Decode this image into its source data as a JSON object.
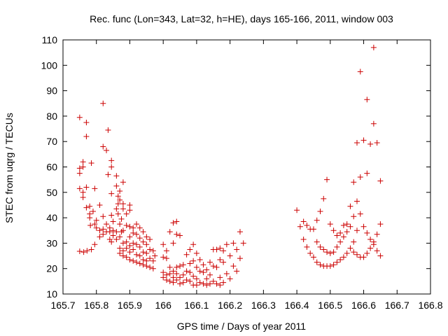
{
  "chart_data": {
    "type": "scatter",
    "title": "Rec. func (Lon=343, Lat=32, h=HE), days 165-166, 2011, window 003",
    "xlabel": "GPS time / Days of year 2011",
    "ylabel": "STEC from uqrg / TECUs",
    "xlim": [
      165.7,
      166.8
    ],
    "ylim": [
      10,
      110
    ],
    "xticks": [
      "165.7",
      "165.8",
      "165.9",
      "166",
      "166.1",
      "166.2",
      "166.3",
      "166.4",
      "166.5",
      "166.6",
      "166.7",
      "166.8"
    ],
    "yticks": [
      "10",
      "20",
      "30",
      "40",
      "50",
      "60",
      "70",
      "80",
      "90",
      "100",
      "110"
    ],
    "grid": false,
    "legend": "none",
    "marker": "plus",
    "color": "#cc0000",
    "points": [
      [
        165.75,
        79.5
      ],
      [
        165.75,
        59.5
      ],
      [
        165.75,
        57.5
      ],
      [
        165.75,
        51.5
      ],
      [
        165.75,
        26.8
      ],
      [
        165.76,
        62.0
      ],
      [
        165.76,
        60.0
      ],
      [
        165.76,
        50.0
      ],
      [
        165.76,
        48.0
      ],
      [
        165.762,
        26.5
      ],
      [
        165.77,
        77.5
      ],
      [
        165.77,
        72.0
      ],
      [
        165.77,
        52.0
      ],
      [
        165.77,
        44.0
      ],
      [
        165.772,
        27.0
      ],
      [
        165.78,
        44.5
      ],
      [
        165.78,
        41.5
      ],
      [
        165.78,
        40.0
      ],
      [
        165.782,
        37.0
      ],
      [
        165.785,
        61.5
      ],
      [
        165.785,
        27.5
      ],
      [
        165.79,
        42.5
      ],
      [
        165.795,
        37.5
      ],
      [
        165.795,
        51.5
      ],
      [
        165.795,
        29.5
      ],
      [
        165.8,
        39.0
      ],
      [
        165.8,
        36.0
      ],
      [
        165.81,
        45.0
      ],
      [
        165.81,
        35.0
      ],
      [
        165.81,
        32.5
      ],
      [
        165.82,
        85.0
      ],
      [
        165.82,
        68.0
      ],
      [
        165.82,
        40.5
      ],
      [
        165.82,
        35.5
      ],
      [
        165.82,
        33.5
      ],
      [
        165.83,
        66.5
      ],
      [
        165.83,
        34.5
      ],
      [
        165.83,
        37.5
      ],
      [
        165.835,
        74.5
      ],
      [
        165.835,
        57.0
      ],
      [
        165.84,
        36.0
      ],
      [
        165.84,
        34.5
      ],
      [
        165.84,
        31.5
      ],
      [
        165.845,
        62.5
      ],
      [
        165.845,
        60.0
      ],
      [
        165.845,
        49.5
      ],
      [
        165.845,
        41.0
      ],
      [
        165.845,
        30.5
      ],
      [
        165.85,
        38.5
      ],
      [
        165.85,
        35.0
      ],
      [
        165.85,
        33.0
      ],
      [
        165.86,
        56.5
      ],
      [
        165.86,
        52.5
      ],
      [
        165.86,
        43.5
      ],
      [
        165.86,
        34.5
      ],
      [
        165.86,
        31.5
      ],
      [
        165.865,
        48.5
      ],
      [
        165.865,
        45.5
      ],
      [
        165.865,
        41.5
      ],
      [
        165.87,
        50.5
      ],
      [
        165.87,
        47.0
      ],
      [
        165.87,
        37.5
      ],
      [
        165.87,
        32.5
      ],
      [
        165.87,
        28.0
      ],
      [
        165.87,
        26.0
      ],
      [
        165.875,
        39.5
      ],
      [
        165.875,
        34.5
      ],
      [
        165.88,
        54.0
      ],
      [
        165.88,
        45.5
      ],
      [
        165.88,
        43.5
      ],
      [
        165.88,
        35.0
      ],
      [
        165.88,
        30.0
      ],
      [
        165.88,
        27.0
      ],
      [
        165.88,
        25.0
      ],
      [
        165.89,
        41.5
      ],
      [
        165.89,
        37.0
      ],
      [
        165.89,
        30.5
      ],
      [
        165.89,
        28.0
      ],
      [
        165.89,
        24.5
      ],
      [
        165.9,
        45.0
      ],
      [
        165.9,
        43.0
      ],
      [
        165.9,
        36.5
      ],
      [
        165.9,
        32.5
      ],
      [
        165.9,
        29.0
      ],
      [
        165.9,
        26.5
      ],
      [
        165.9,
        23.5
      ],
      [
        165.91,
        36.0
      ],
      [
        165.91,
        34.0
      ],
      [
        165.91,
        30.0
      ],
      [
        165.91,
        27.5
      ],
      [
        165.91,
        23.0
      ],
      [
        165.92,
        37.5
      ],
      [
        165.92,
        33.5
      ],
      [
        165.92,
        29.5
      ],
      [
        165.92,
        25.5
      ],
      [
        165.92,
        22.5
      ],
      [
        165.93,
        36.0
      ],
      [
        165.93,
        32.0
      ],
      [
        165.93,
        28.5
      ],
      [
        165.93,
        25.0
      ],
      [
        165.93,
        22.0
      ],
      [
        165.94,
        34.5
      ],
      [
        165.94,
        30.5
      ],
      [
        165.94,
        26.5
      ],
      [
        165.94,
        23.5
      ],
      [
        165.94,
        21.5
      ],
      [
        165.95,
        32.5
      ],
      [
        165.95,
        29.5
      ],
      [
        165.95,
        26.0
      ],
      [
        165.95,
        23.0
      ],
      [
        165.95,
        21.0
      ],
      [
        165.96,
        31.5
      ],
      [
        165.96,
        27.5
      ],
      [
        165.96,
        24.0
      ],
      [
        165.96,
        20.5
      ],
      [
        165.97,
        27.0
      ],
      [
        165.97,
        23.0
      ],
      [
        165.97,
        20.0
      ],
      [
        165.975,
        25.0
      ],
      [
        166.0,
        29.5
      ],
      [
        166.0,
        24.5
      ],
      [
        166.0,
        18.5
      ],
      [
        166.0,
        16.5
      ],
      [
        166.01,
        27.0
      ],
      [
        166.01,
        24.0
      ],
      [
        166.01,
        17.5
      ],
      [
        166.01,
        15.5
      ],
      [
        166.02,
        34.5
      ],
      [
        166.02,
        20.5
      ],
      [
        166.02,
        18.0
      ],
      [
        166.02,
        15.0
      ],
      [
        166.03,
        38.0
      ],
      [
        166.03,
        30.0
      ],
      [
        166.03,
        19.0
      ],
      [
        166.03,
        16.5
      ],
      [
        166.03,
        14.5
      ],
      [
        166.04,
        38.5
      ],
      [
        166.04,
        33.5
      ],
      [
        166.04,
        20.5
      ],
      [
        166.04,
        18.0
      ],
      [
        166.04,
        15.5
      ],
      [
        166.05,
        33.0
      ],
      [
        166.05,
        21.0
      ],
      [
        166.05,
        16.5
      ],
      [
        166.05,
        14.0
      ],
      [
        166.06,
        21.5
      ],
      [
        166.06,
        17.5
      ],
      [
        166.06,
        14.5
      ],
      [
        166.07,
        25.5
      ],
      [
        166.07,
        19.0
      ],
      [
        166.07,
        15.5
      ],
      [
        166.08,
        27.5
      ],
      [
        166.08,
        22.0
      ],
      [
        166.08,
        18.5
      ],
      [
        166.08,
        15.0
      ],
      [
        166.09,
        29.5
      ],
      [
        166.09,
        23.0
      ],
      [
        166.09,
        17.0
      ],
      [
        166.09,
        13.5
      ],
      [
        166.1,
        26.0
      ],
      [
        166.1,
        20.5
      ],
      [
        166.1,
        16.0
      ],
      [
        166.1,
        13.5
      ],
      [
        166.11,
        23.5
      ],
      [
        166.11,
        19.0
      ],
      [
        166.11,
        14.5
      ],
      [
        166.12,
        21.5
      ],
      [
        166.12,
        18.5
      ],
      [
        166.12,
        14.0
      ],
      [
        166.13,
        19.5
      ],
      [
        166.13,
        16.0
      ],
      [
        166.13,
        13.5
      ],
      [
        166.14,
        22.5
      ],
      [
        166.14,
        17.5
      ],
      [
        166.14,
        14.0
      ],
      [
        166.15,
        27.5
      ],
      [
        166.15,
        21.0
      ],
      [
        166.15,
        15.0
      ],
      [
        166.16,
        27.5
      ],
      [
        166.16,
        20.5
      ],
      [
        166.16,
        14.0
      ],
      [
        166.17,
        28.0
      ],
      [
        166.17,
        23.5
      ],
      [
        166.17,
        16.5
      ],
      [
        166.17,
        13.5
      ],
      [
        166.18,
        27.0
      ],
      [
        166.18,
        22.5
      ],
      [
        166.18,
        14.5
      ],
      [
        166.19,
        29.5
      ],
      [
        166.19,
        18.0
      ],
      [
        166.2,
        25.0
      ],
      [
        166.2,
        16.0
      ],
      [
        166.21,
        30.0
      ],
      [
        166.21,
        21.0
      ],
      [
        166.22,
        27.5
      ],
      [
        166.22,
        19.0
      ],
      [
        166.23,
        34.5
      ],
      [
        166.23,
        24.0
      ],
      [
        166.24,
        30.0
      ],
      [
        166.4,
        43.0
      ],
      [
        166.41,
        36.5
      ],
      [
        166.42,
        38.5
      ],
      [
        166.42,
        31.5
      ],
      [
        166.43,
        37.0
      ],
      [
        166.43,
        28.5
      ],
      [
        166.44,
        35.5
      ],
      [
        166.44,
        26.0
      ],
      [
        166.45,
        35.5
      ],
      [
        166.45,
        24.5
      ],
      [
        166.46,
        39.0
      ],
      [
        166.46,
        30.5
      ],
      [
        166.46,
        22.5
      ],
      [
        166.47,
        42.5
      ],
      [
        166.47,
        28.5
      ],
      [
        166.47,
        21.5
      ],
      [
        166.48,
        47.5
      ],
      [
        166.48,
        27.5
      ],
      [
        166.48,
        21.0
      ],
      [
        166.49,
        55.0
      ],
      [
        166.49,
        26.5
      ],
      [
        166.49,
        21.0
      ],
      [
        166.5,
        37.5
      ],
      [
        166.5,
        26.0
      ],
      [
        166.5,
        21.0
      ],
      [
        166.51,
        35.0
      ],
      [
        166.51,
        26.5
      ],
      [
        166.51,
        21.5
      ],
      [
        166.52,
        33.0
      ],
      [
        166.52,
        28.5
      ],
      [
        166.52,
        22.5
      ],
      [
        166.53,
        34.0
      ],
      [
        166.53,
        30.5
      ],
      [
        166.53,
        23.5
      ],
      [
        166.54,
        37.0
      ],
      [
        166.54,
        32.5
      ],
      [
        166.54,
        24.5
      ],
      [
        166.55,
        37.5
      ],
      [
        166.55,
        34.5
      ],
      [
        166.55,
        26.0
      ],
      [
        166.56,
        44.5
      ],
      [
        166.56,
        36.5
      ],
      [
        166.56,
        28.0
      ],
      [
        166.57,
        54.0
      ],
      [
        166.57,
        40.5
      ],
      [
        166.57,
        30.5
      ],
      [
        166.57,
        26.5
      ],
      [
        166.58,
        69.5
      ],
      [
        166.58,
        46.5
      ],
      [
        166.58,
        35.0
      ],
      [
        166.58,
        25.5
      ],
      [
        166.59,
        97.5
      ],
      [
        166.59,
        56.0
      ],
      [
        166.59,
        41.5
      ],
      [
        166.59,
        24.5
      ],
      [
        166.6,
        70.5
      ],
      [
        166.6,
        36.5
      ],
      [
        166.6,
        24.5
      ],
      [
        166.61,
        86.5
      ],
      [
        166.61,
        57.5
      ],
      [
        166.61,
        34.0
      ],
      [
        166.61,
        26.0
      ],
      [
        166.62,
        69.0
      ],
      [
        166.62,
        31.5
      ],
      [
        166.62,
        28.0
      ],
      [
        166.63,
        107.0
      ],
      [
        166.63,
        77.0
      ],
      [
        166.63,
        30.5
      ],
      [
        166.63,
        29.5
      ],
      [
        166.64,
        69.5
      ],
      [
        166.64,
        33.5
      ],
      [
        166.64,
        27.0
      ],
      [
        166.65,
        54.5
      ],
      [
        166.65,
        37.5
      ],
      [
        166.65,
        25.0
      ]
    ]
  }
}
